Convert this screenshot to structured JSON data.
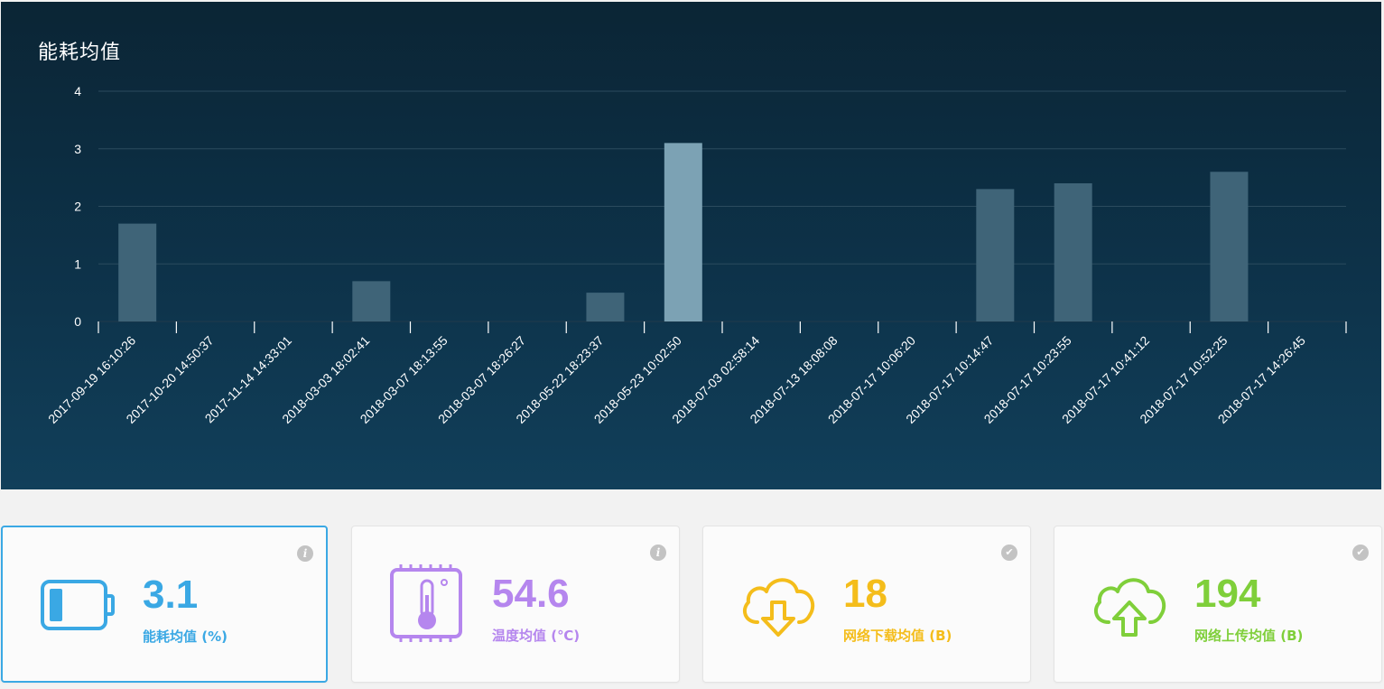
{
  "chart": {
    "title": "能耗均值"
  },
  "chart_data": {
    "type": "bar",
    "title": "能耗均值",
    "categories": [
      "2017-09-19 16:10:26",
      "2017-10-20 14:50:37",
      "2017-11-14 14:33:01",
      "2018-03-03 18:02:41",
      "2018-03-07 18:13:55",
      "2018-03-07 18:26:27",
      "2018-05-22 18:23:37",
      "2018-05-23 10:02:50",
      "2018-07-03 02:58:14",
      "2018-07-13 18:08:08",
      "2018-07-17 10:06:20",
      "2018-07-17 10:14:47",
      "2018-07-17 10:23:55",
      "2018-07-17 10:41:12",
      "2018-07-17 10:52:25",
      "2018-07-17 14:26:45"
    ],
    "values": [
      1.7,
      0,
      0,
      0.7,
      0,
      0,
      0.5,
      3.1,
      0,
      0,
      0,
      2.3,
      2.4,
      0,
      2.6,
      0
    ],
    "highlight_index": 7,
    "yticks": [
      0,
      1,
      2,
      3,
      4
    ],
    "ylim": [
      0,
      4
    ],
    "xlabel": "",
    "ylabel": "",
    "grid": true,
    "bar_color": "#3f6478",
    "highlight_color": "#7ca2b4"
  },
  "cards": [
    {
      "value": "3.1",
      "label": "能耗均值 (%)",
      "color": "#3aa8e4",
      "icon": "battery-icon",
      "badge_icon": "info-icon",
      "badge": "i",
      "active": true
    },
    {
      "value": "54.6",
      "label": "温度均值 (℃)",
      "color": "#b586ee",
      "icon": "thermometer-icon",
      "badge_icon": "info-icon",
      "badge": "i",
      "active": false
    },
    {
      "value": "18",
      "label": "网络下载均值 (B)",
      "color": "#f4bd1b",
      "icon": "cloud-download-icon",
      "badge_icon": "check-icon",
      "badge": "✔",
      "active": false
    },
    {
      "value": "194",
      "label": "网络上传均值 (B)",
      "color": "#7fcf3a",
      "icon": "cloud-upload-icon",
      "badge_icon": "check-icon",
      "badge": "✔",
      "active": false
    }
  ]
}
